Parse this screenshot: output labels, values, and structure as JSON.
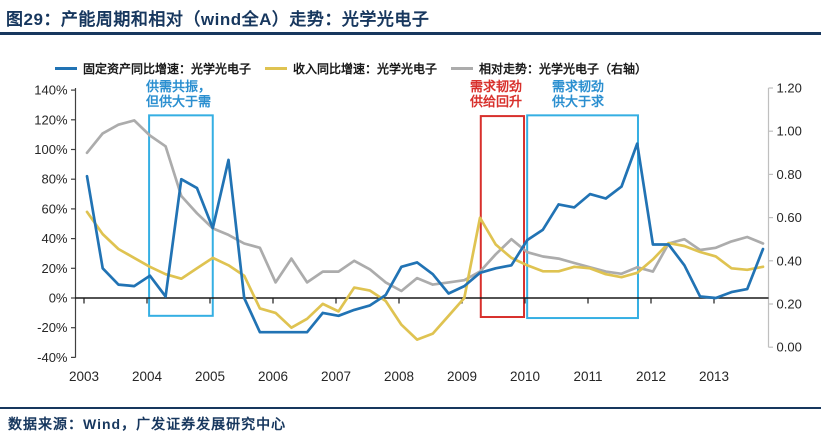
{
  "header": {
    "title": "图29：产能周期和相对（wind全A）走势：光学光电子"
  },
  "legend": {
    "items": [
      {
        "label": "固定资产同比增速：光学光电子",
        "color": "#2173B4"
      },
      {
        "label": "收入同比增速：光学光电子",
        "color": "#DFC351"
      },
      {
        "label": "相对走势：光学光电子（右轴）",
        "color": "#ACACAC"
      }
    ]
  },
  "annotations": {
    "notes": [
      {
        "id": "resonance",
        "lines": [
          "供需共振，",
          "但供大于需"
        ],
        "color": "#2B8FD0"
      },
      {
        "id": "recovery",
        "lines": [
          "需求韧劲",
          "供给回升"
        ],
        "color": "#D8302C"
      },
      {
        "id": "oversupply",
        "lines": [
          "需求韧劲",
          "供大于求"
        ],
        "color": "#2B8FD0"
      }
    ],
    "boxes": [
      {
        "from_quarter": 3.95,
        "to_quarter": 8.0,
        "top_pct": 123,
        "bottom_pct": -12,
        "color": "#35AFE3"
      },
      {
        "from_quarter": 25.05,
        "to_quarter": 27.8,
        "top_pct": 122.5,
        "bottom_pct": -12.8,
        "color": "#D8302C"
      },
      {
        "from_quarter": 28.0,
        "to_quarter": 35.05,
        "top_pct": 123,
        "bottom_pct": -13.5,
        "color": "#35AFE3"
      }
    ]
  },
  "chart_data": {
    "type": "line",
    "frequency": "quarterly",
    "title": "图29：产能周期和相对（wind全A）走势：光学光电子",
    "x_years": [
      "2003",
      "2004",
      "2005",
      "2006",
      "2007",
      "2008",
      "2009",
      "2010",
      "2011",
      "2012",
      "2013"
    ],
    "left_axis": {
      "ticks_pct": [
        140,
        120,
        100,
        80,
        60,
        40,
        20,
        0,
        -20,
        -40
      ],
      "format": "percent",
      "range": [
        -40,
        140
      ]
    },
    "right_axis": {
      "ticks": [
        "1.20",
        "1.00",
        "0.80",
        "0.60",
        "0.40",
        "0.20",
        "0.00"
      ],
      "range": [
        0,
        1.2
      ]
    },
    "legend_position": "top",
    "series": [
      {
        "name": "固定资产同比增速：光学光电子",
        "axis": "left",
        "unit": "%",
        "color": "#2173B4",
        "values": [
          82,
          20,
          9,
          8,
          15,
          1,
          80,
          74,
          47,
          93,
          0,
          -23,
          -23,
          -23,
          -23,
          -10,
          -12,
          -8,
          -5,
          2,
          21,
          24,
          16,
          3,
          8,
          17,
          20,
          22,
          39,
          46,
          63,
          61,
          70,
          67,
          75,
          104,
          36,
          36,
          22,
          1,
          0,
          4,
          6,
          33
        ]
      },
      {
        "name": "收入同比增速：光学光电子",
        "axis": "left",
        "unit": "%",
        "color": "#DFC351",
        "values": [
          58,
          43,
          33,
          27,
          21,
          16,
          13,
          20,
          27,
          22,
          15,
          -7,
          -10,
          -20,
          -14,
          -4,
          -9,
          7,
          5,
          -2,
          -18,
          -28,
          -24,
          -12,
          0,
          54,
          36,
          27,
          22,
          18,
          18,
          21,
          20,
          16,
          14,
          17,
          26,
          37,
          35,
          31,
          28,
          20,
          19,
          21
        ]
      },
      {
        "name": "相对走势：光学光电子（右轴）",
        "axis": "right",
        "unit": "",
        "color": "#ACACAC",
        "values": [
          0.9,
          0.99,
          1.03,
          1.05,
          0.98,
          0.93,
          0.7,
          0.62,
          0.55,
          0.52,
          0.48,
          0.46,
          0.3,
          0.41,
          0.3,
          0.35,
          0.35,
          0.4,
          0.36,
          0.3,
          0.26,
          0.32,
          0.29,
          0.3,
          0.31,
          0.35,
          0.43,
          0.5,
          0.44,
          0.42,
          0.41,
          0.39,
          0.37,
          0.35,
          0.34,
          0.37,
          0.35,
          0.48,
          0.5,
          0.45,
          0.46,
          0.49,
          0.51,
          0.48
        ]
      }
    ]
  },
  "footer": {
    "source": "数据来源：Wind，广发证券发展研究中心"
  },
  "colors": {
    "navy": "#17375E",
    "axis_text": "#262626",
    "left_axis_line": "#404040",
    "right_axis_line": "#BFBFBF",
    "zero_line": "#1A1A1A"
  }
}
